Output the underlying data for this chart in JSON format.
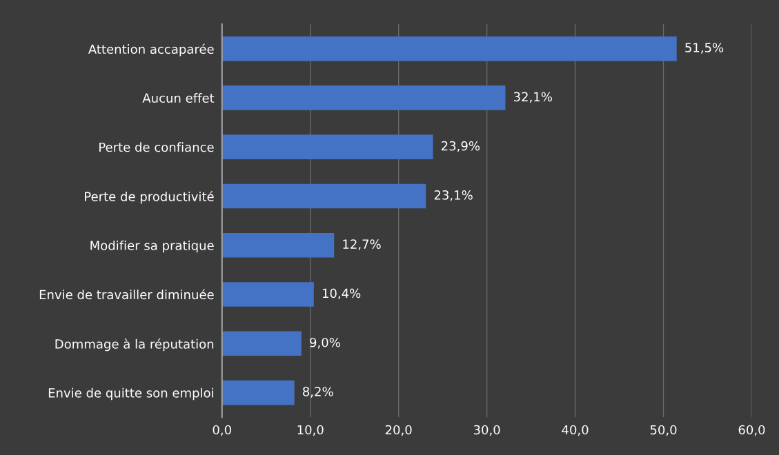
{
  "chart_data": {
    "type": "bar",
    "orientation": "horizontal",
    "categories": [
      "Attention accaparée",
      "Aucun effet",
      "Perte de confiance",
      "Perte de productivité",
      "Modifier sa pratique",
      "Envie de travailler diminuée",
      "Dommage à la réputation",
      "Envie de quitte son emploi"
    ],
    "values": [
      51.5,
      32.1,
      23.9,
      23.1,
      12.7,
      10.4,
      9.0,
      8.2
    ],
    "value_labels": [
      "51,5%",
      "32,1%",
      "23,9%",
      "23,1%",
      "12,7%",
      "10,4%",
      "9,0%",
      "8,2%"
    ],
    "color": "#4472c4",
    "xlim": [
      0,
      60
    ],
    "xticks": [
      {
        "value": 0,
        "label": "0,0"
      },
      {
        "value": 10,
        "label": "10,0"
      },
      {
        "value": 20,
        "label": "20,0"
      },
      {
        "value": 30,
        "label": "30,0"
      },
      {
        "value": 40,
        "label": "40,0"
      },
      {
        "value": 50,
        "label": "50,0"
      },
      {
        "value": 60,
        "label": "60,0"
      }
    ],
    "grid": "x",
    "legend": false
  }
}
